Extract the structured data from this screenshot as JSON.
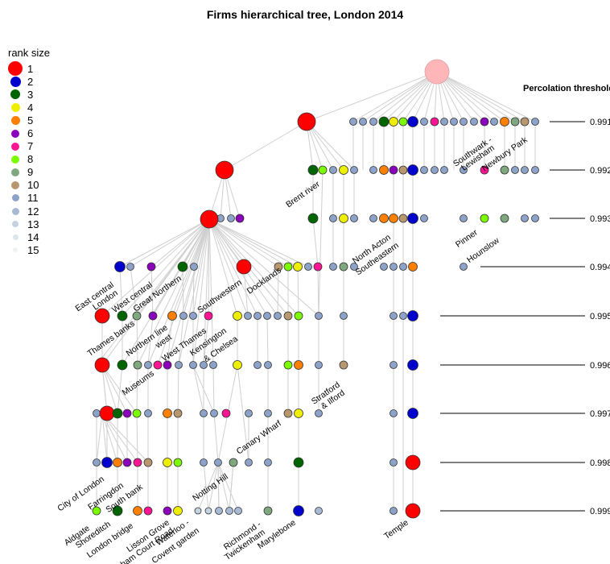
{
  "title": "Firms hierarchical tree, London 2014",
  "legend": {
    "title": "rank size",
    "items": [
      {
        "label": "1",
        "color": "#ff0000"
      },
      {
        "label": "2",
        "color": "#0000cd"
      },
      {
        "label": "3",
        "color": "#006400"
      },
      {
        "label": "4",
        "color": "#eeee00"
      },
      {
        "label": "5",
        "color": "#ff7f00"
      },
      {
        "label": "6",
        "color": "#8b00bb"
      },
      {
        "label": "7",
        "color": "#ff1493"
      },
      {
        "label": "8",
        "color": "#7cfc00"
      },
      {
        "label": "9",
        "color": "#7fa87f"
      },
      {
        "label": "10",
        "color": "#b8966e"
      },
      {
        "label": "11",
        "color": "#8da2c8"
      },
      {
        "label": "12",
        "color": "#a7b9d4"
      },
      {
        "label": "13",
        "color": "#c5d3e0"
      },
      {
        "label": "14",
        "color": "#dde5ec"
      },
      {
        "label": "15",
        "color": "#eef0f2"
      }
    ]
  },
  "percolation": {
    "title": "Percolation threshold",
    "levels": [
      "0.991",
      "0.992",
      "0.993",
      "0.994",
      "0.995",
      "0.996",
      "0.997",
      "0.998",
      "0.999"
    ]
  },
  "labels": [
    "East central",
    "London",
    "West central",
    "Great Northern",
    "Southwestern",
    "Docklands",
    "Brent river",
    "North Acton",
    "Southeastern",
    "Southwark -",
    "Lewisham",
    "Newbury Park",
    "Pinner",
    "Hounslow",
    "Thames banks",
    "Northern line",
    "west",
    "West Thames",
    "Kensington",
    "& Chelsea",
    "Museums",
    "Stratford",
    "& Ilford",
    "Canary Wharf",
    "Notting Hill",
    "City of London",
    "Farringdon",
    "South bank",
    "Aldgate",
    "Shoreditch",
    "London bridge",
    "Lisson Grove",
    "Tottenham Court Road",
    "Waterloo -",
    "Covent garden",
    "Richmond -",
    "Twickenham",
    "Marylebone",
    "Temple"
  ]
}
